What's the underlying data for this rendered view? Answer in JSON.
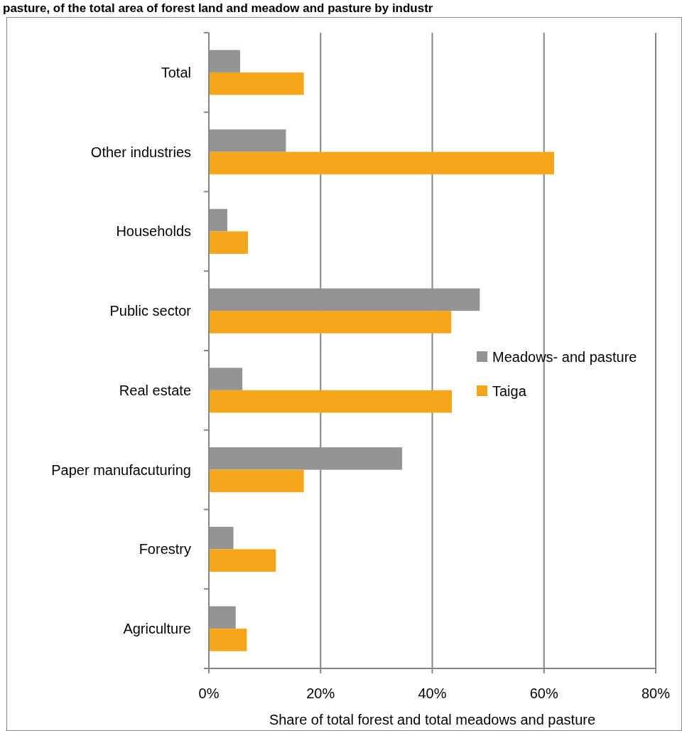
{
  "chart_data": {
    "type": "bar",
    "orientation": "horizontal",
    "title": "pasture, of the total area of forest land and meadow and pasture by industr",
    "xlabel": "Share of total forest and total meadows and pasture",
    "categories": [
      "Total",
      "Other industries",
      "Households",
      "Public sector",
      "Real estate",
      "Paper manufacuturing",
      "Forestry",
      "Agriculture"
    ],
    "series": [
      {
        "name": "Meadows- and pasture",
        "color": "#949494",
        "values": [
          5.6,
          13.8,
          3.3,
          48.5,
          6.0,
          34.6,
          4.4,
          4.8
        ]
      },
      {
        "name": "Taiga",
        "color": "#f5a51a",
        "values": [
          17,
          61.8,
          7,
          43.4,
          43.5,
          17,
          12,
          6.8
        ]
      }
    ],
    "xlim": [
      0,
      80
    ],
    "xticks": [
      {
        "value": 0,
        "label": "0%"
      },
      {
        "value": 20,
        "label": "20%"
      },
      {
        "value": 40,
        "label": "40%"
      },
      {
        "value": 60,
        "label": "60%"
      },
      {
        "value": 80,
        "label": "80%"
      }
    ],
    "grid": "x",
    "legend": "right"
  }
}
